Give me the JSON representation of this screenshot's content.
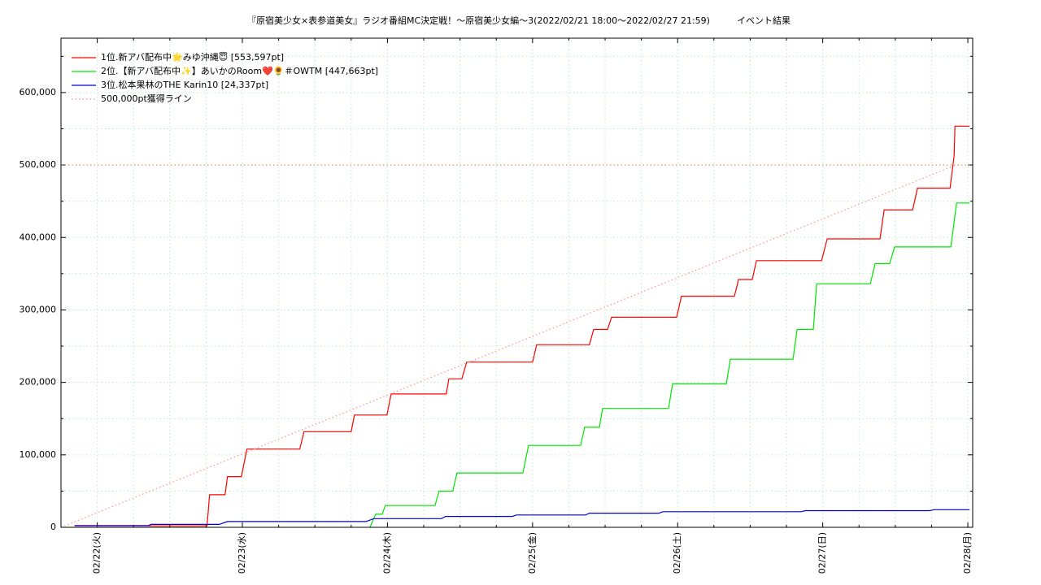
{
  "chart_data": {
    "type": "line",
    "title": "『原宿美少女×表参道美女』ラジオ番組MC決定戦！～原宿美少女編～3(2022/02/21 18:00～2022/02/27 21:59)　　　イベント結果",
    "xlim": [
      "02/21 18:00",
      "02/28 00:48"
    ],
    "xticks": [
      {
        "value": "02/22 00:00",
        "label": "02/22(火)"
      },
      {
        "value": "02/23 00:00",
        "label": "02/23(水)"
      },
      {
        "value": "02/24 00:00",
        "label": "02/24(木)"
      },
      {
        "value": "02/25 00:00",
        "label": "02/25(金)"
      },
      {
        "value": "02/26 00:00",
        "label": "02/26(土)"
      },
      {
        "value": "02/27 00:00",
        "label": "02/27(日)"
      },
      {
        "value": "02/28 00:00",
        "label": "02/28(月)"
      }
    ],
    "xminor_ticks": [
      "02/22 06:00",
      "02/22 12:00",
      "02/22 18:00",
      "02/23 06:00",
      "02/23 12:00",
      "02/23 18:00",
      "02/24 06:00",
      "02/24 12:00",
      "02/24 18:00",
      "02/25 06:00",
      "02/25 12:00",
      "02/25 18:00",
      "02/26 06:00",
      "02/26 12:00",
      "02/26 18:00",
      "02/27 06:00",
      "02/27 12:00",
      "02/27 18:00"
    ],
    "ylim": [
      0,
      675000
    ],
    "yticks": [
      0,
      {
        "value": 100000,
        "label": "100,000"
      },
      {
        "value": 200000,
        "label": "200,000"
      },
      {
        "value": 300000,
        "label": "300,000"
      },
      {
        "value": 400000,
        "label": "400,000"
      },
      {
        "value": 500000,
        "label": "500,000"
      },
      {
        "value": 600000,
        "label": "600,000"
      }
    ],
    "yminor_ticks": [
      50000,
      150000,
      250000,
      350000,
      450000,
      550000,
      650000
    ],
    "grid": true,
    "grid_color": "#b8f0c8",
    "legend": "upper left",
    "reference_line": {
      "value": 500000,
      "color": "#e08030"
    },
    "series": [
      {
        "name": "1位.新アバ配布中🌟みゆ沖縄😇 [553,597pt]",
        "color": "#ff0000",
        "x": [
          "02/21 20:15",
          "02/22 18:10",
          "02/22 18:35",
          "02/22 21:08",
          "02/22 21:32",
          "02/22 23:50",
          "02/23 00:45",
          "02/23 09:30",
          "02/23 10:12",
          "02/23 18:00",
          "02/23 18:32",
          "02/23 23:55",
          "02/24 00:36",
          "02/24 09:44",
          "02/24 10:09",
          "02/24 12:18",
          "02/24 13:06",
          "02/25 00:00",
          "02/25 00:41",
          "02/25 09:25",
          "02/25 10:06",
          "02/25 12:24",
          "02/25 13:04",
          "02/25 23:50",
          "02/26 00:38",
          "02/26 09:23",
          "02/26 10:04",
          "02/26 12:21",
          "02/26 13:02",
          "02/26 23:48",
          "02/27 00:44",
          "02/27 09:28",
          "02/27 10:09",
          "02/27 14:52",
          "02/27 15:40",
          "02/27 21:04",
          "02/27 21:44",
          "02/27 21:52",
          "02/28 00:17"
        ],
        "values": [
          2000,
          2000,
          45000,
          45000,
          70000,
          70000,
          108000,
          108000,
          132000,
          132000,
          155000,
          155000,
          184000,
          184000,
          205000,
          205000,
          228000,
          228000,
          252000,
          252000,
          273000,
          273000,
          290000,
          290000,
          319000,
          319000,
          342000,
          342000,
          368000,
          368000,
          398000,
          398000,
          438000,
          438000,
          468000,
          468000,
          513000,
          553597,
          553597
        ]
      },
      {
        "name": "2位.【新アバ配布中✨】あいかのRoom❤️🌻＃OWTM [447,663pt]",
        "color": "#00e600",
        "x": [
          "02/23 21:06",
          "02/23 22:02",
          "02/23 23:07",
          "02/23 23:39",
          "02/24 07:52",
          "02/24 08:32",
          "02/24 10:49",
          "02/24 11:30",
          "02/24 22:24",
          "02/24 23:20",
          "02/25 07:57",
          "02/25 08:37",
          "02/25 11:03",
          "02/25 11:35",
          "02/25 22:29",
          "02/25 23:10",
          "02/26 08:03",
          "02/26 08:43",
          "02/26 19:05",
          "02/26 19:45",
          "02/26 22:27",
          "02/26 22:59",
          "02/27 07:52",
          "02/27 08:40",
          "02/27 11:05",
          "02/27 11:53",
          "02/27 21:12",
          "02/27 22:08",
          "02/28 00:17"
        ],
        "values": [
          0,
          18000,
          18000,
          30000,
          30000,
          50000,
          50000,
          75000,
          75000,
          113000,
          113000,
          138000,
          138000,
          164000,
          164000,
          198000,
          198000,
          232000,
          232000,
          273000,
          273000,
          336000,
          336000,
          364000,
          364000,
          387000,
          387000,
          447663,
          447663
        ]
      },
      {
        "name": "3位.松本果林のTHE Karin10 [24,337pt]",
        "color": "#0000dd",
        "x": [
          "02/21 20:15",
          "02/22 08:29",
          "02/22 08:53",
          "02/22 20:11",
          "02/22 21:32",
          "02/23 20:25",
          "02/23 21:46",
          "02/24 08:56",
          "02/24 09:37",
          "02/24 20:39",
          "02/24 21:19",
          "02/25 08:46",
          "02/25 09:26",
          "02/25 20:53",
          "02/25 21:33",
          "02/26 20:26",
          "02/26 21:06",
          "02/27 17:42",
          "02/27 18:22",
          "02/28 00:17"
        ],
        "values": [
          2500,
          2500,
          4000,
          4000,
          8000,
          8000,
          12000,
          12000,
          15000,
          15000,
          17000,
          17000,
          19500,
          19500,
          21500,
          21500,
          23000,
          23000,
          24337,
          24337
        ]
      },
      {
        "name": "500,000pt獲得ライン",
        "color": "#ff9090",
        "dashed": true,
        "x": [
          "02/21 18:00",
          "02/27 21:59"
        ],
        "values": [
          0,
          500000
        ]
      }
    ]
  }
}
